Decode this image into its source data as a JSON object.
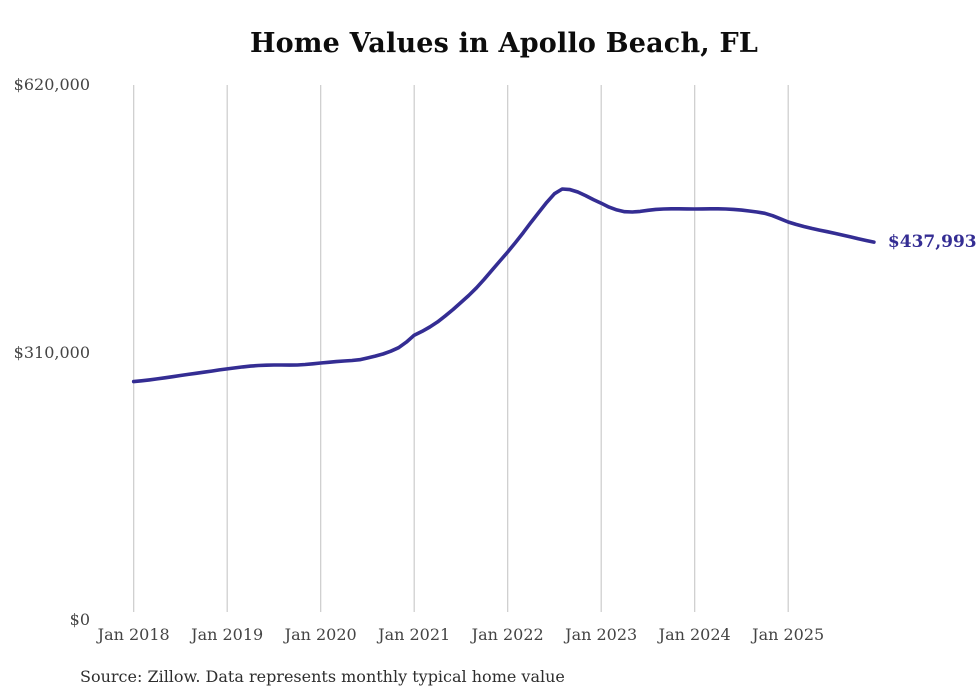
{
  "colors": {
    "line": "#342d93",
    "grid": "#cbcbcb",
    "title": "#0d0d0d",
    "axis_text": "#444444",
    "source_text": "#2e2e2e",
    "background": "#ffffff"
  },
  "chart_data": {
    "type": "line",
    "title": "Home Values in Apollo Beach, FL",
    "start_month": "2018-01",
    "end_month": "2025-12",
    "frequency": "monthly",
    "values": [
      276300,
      277200,
      278200,
      279400,
      280700,
      282000,
      283300,
      284600,
      285900,
      287200,
      288500,
      289800,
      291000,
      292200,
      293300,
      294200,
      294900,
      295300,
      295500,
      295500,
      295400,
      295500,
      296100,
      296900,
      297800,
      298600,
      299400,
      300100,
      300700,
      301700,
      303600,
      305800,
      308300,
      311500,
      315600,
      322000,
      330000,
      334500,
      339500,
      345500,
      352500,
      360000,
      368000,
      376000,
      385000,
      395000,
      405500,
      416000,
      426500,
      437500,
      449000,
      461000,
      472500,
      484000,
      494000,
      499500,
      498800,
      496000,
      491800,
      487200,
      483000,
      478500,
      475200,
      473200,
      472800,
      473500,
      474800,
      475800,
      476300,
      476500,
      476500,
      476400,
      476300,
      476400,
      476500,
      476500,
      476300,
      475800,
      475000,
      474000,
      472800,
      471300,
      468500,
      465000,
      461200,
      458500,
      456000,
      453800,
      451800,
      450000,
      448000,
      446000,
      444000,
      441800,
      439800,
      437993
    ],
    "end_label": "$437,993",
    "y_axis": {
      "range": [
        0,
        620000
      ],
      "ticks": [
        620000,
        310000,
        0
      ],
      "tick_labels": [
        "$620,000",
        "$310,000",
        "$0"
      ]
    },
    "x_axis": {
      "tick_labels": [
        "Jan 2018",
        "Jan 2019",
        "Jan 2020",
        "Jan 2021",
        "Jan 2022",
        "Jan 2023",
        "Jan 2024",
        "Jan 2025"
      ]
    },
    "grid": true,
    "legend": false,
    "source_note": "Source: Zillow. Data represents monthly typical home value"
  }
}
